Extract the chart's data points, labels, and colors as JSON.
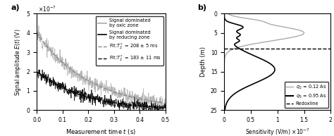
{
  "panel_a": {
    "xlabel": "Measurement time $t$ (s)",
    "ylabel": "Signal amplitude $E(t)$ (V)",
    "xlim": [
      0,
      0.5
    ],
    "ylim": [
      0,
      5e-07
    ],
    "ytick_vals": [
      0,
      1e-07,
      2e-07,
      3e-07,
      4e-07,
      5e-07
    ],
    "ytick_labels": [
      "0",
      "1",
      "2",
      "3",
      "4",
      "5"
    ],
    "xticks": [
      0,
      0.1,
      0.2,
      0.3,
      0.4,
      0.5
    ],
    "oxic_color": "#aaaaaa",
    "reducing_color": "#000000",
    "fit_oxic_color": "#888888",
    "fit_reducing_color": "#000000",
    "T2_oxic": 0.208,
    "T2_reducing": 0.183,
    "A_oxic": 4e-07,
    "A_reducing": 2e-07,
    "noise_oxic": 1.8e-08,
    "noise_reducing": 1.4e-08
  },
  "panel_b": {
    "xlabel": "Sensitivity (V/m) $\\times10^{-7}$",
    "ylabel": "Depth (m)",
    "xlim": [
      0,
      2
    ],
    "ylim": [
      25,
      0
    ],
    "yticks": [
      0,
      5,
      10,
      15,
      20,
      25
    ],
    "xticks": [
      0,
      0.5,
      1.0,
      1.5,
      2.0
    ],
    "xtick_labels": [
      "0",
      "0.5",
      "1",
      "1.5",
      "2"
    ],
    "redox_depth": 9.0,
    "q2_color": "#aaaaaa",
    "q5_color": "#000000",
    "redox_color": "#000000"
  }
}
